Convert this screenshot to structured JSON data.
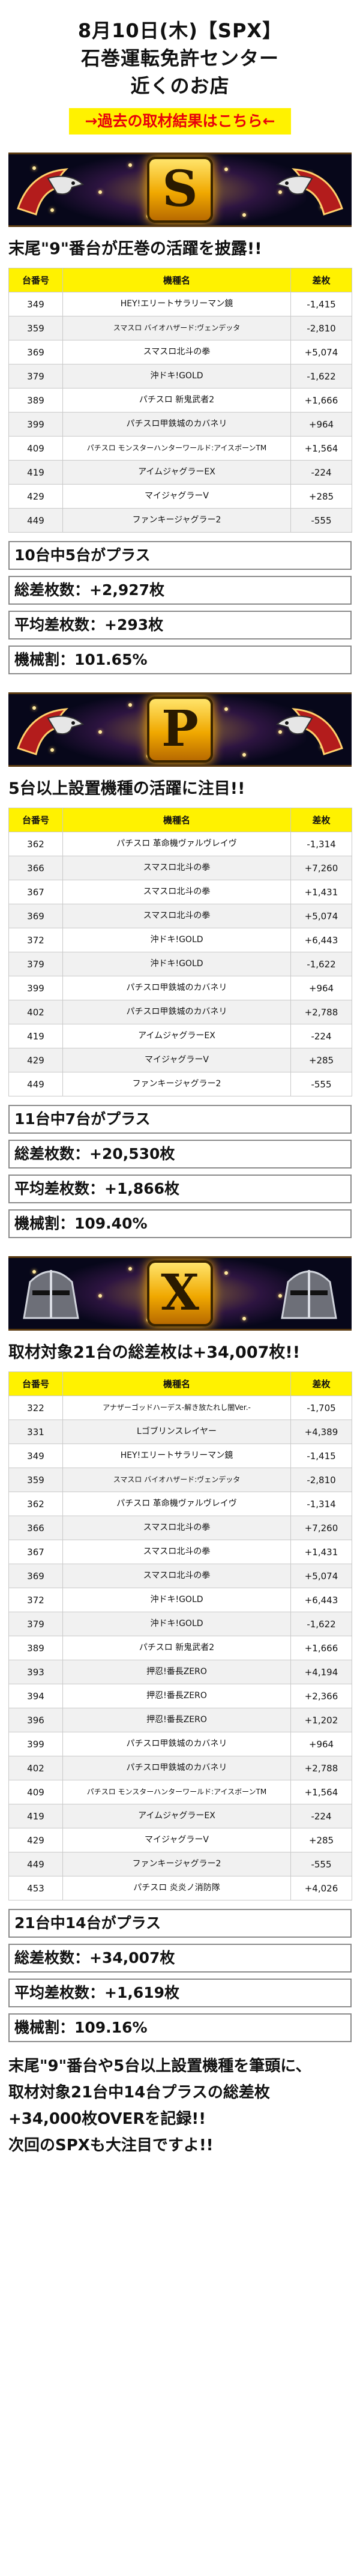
{
  "header": {
    "line1": "8月10日(木)【SPX】",
    "line2": "石巻運転免許センター",
    "line3": "近くのお店",
    "link_label": "→過去の取材結果はこちら←"
  },
  "columns": {
    "num": "台番号",
    "name": "機種名",
    "diff": "差枚"
  },
  "sections": [
    {
      "banner_letter": "S",
      "headline": "末尾\"9\"番台が圧巻の活躍を披露!!",
      "rows": [
        {
          "num": "349",
          "name": "HEY!エリートサラリーマン鏡",
          "diff": "-1,415"
        },
        {
          "num": "359",
          "name": "スマスロ バイオハザード:ヴェンデッタ",
          "diff": "-2,810"
        },
        {
          "num": "369",
          "name": "スマスロ北斗の拳",
          "diff": "+5,074"
        },
        {
          "num": "379",
          "name": "沖ドキ!GOLD",
          "diff": "-1,622"
        },
        {
          "num": "389",
          "name": "パチスロ 新鬼武者2",
          "diff": "+1,666"
        },
        {
          "num": "399",
          "name": "パチスロ甲鉄城のカバネリ",
          "diff": "+964"
        },
        {
          "num": "409",
          "name": "パチスロ モンスターハンターワールド:アイスボーンTM",
          "diff": "+1,564"
        },
        {
          "num": "419",
          "name": "アイムジャグラーEX",
          "diff": "-224"
        },
        {
          "num": "429",
          "name": "マイジャグラーV",
          "diff": "+285"
        },
        {
          "num": "449",
          "name": "ファンキージャグラー2",
          "diff": "-555"
        }
      ],
      "stats": [
        "10台中5台がプラス",
        "総差枚数：+2,927枚",
        "平均差枚数：+293枚",
        "機械割：101.65%"
      ]
    },
    {
      "banner_letter": "P",
      "headline": "5台以上設置機種の活躍に注目!!",
      "rows": [
        {
          "num": "362",
          "name": "パチスロ 革命機ヴァルヴレイヴ",
          "diff": "-1,314"
        },
        {
          "num": "366",
          "name": "スマスロ北斗の拳",
          "diff": "+7,260"
        },
        {
          "num": "367",
          "name": "スマスロ北斗の拳",
          "diff": "+1,431"
        },
        {
          "num": "369",
          "name": "スマスロ北斗の拳",
          "diff": "+5,074"
        },
        {
          "num": "372",
          "name": "沖ドキ!GOLD",
          "diff": "+6,443"
        },
        {
          "num": "379",
          "name": "沖ドキ!GOLD",
          "diff": "-1,622"
        },
        {
          "num": "399",
          "name": "パチスロ甲鉄城のカバネリ",
          "diff": "+964"
        },
        {
          "num": "402",
          "name": "パチスロ甲鉄城のカバネリ",
          "diff": "+2,788"
        },
        {
          "num": "419",
          "name": "アイムジャグラーEX",
          "diff": "-224"
        },
        {
          "num": "429",
          "name": "マイジャグラーV",
          "diff": "+285"
        },
        {
          "num": "449",
          "name": "ファンキージャグラー2",
          "diff": "-555"
        }
      ],
      "stats": [
        "11台中7台がプラス",
        "総差枚数：+20,530枚",
        "平均差枚数：+1,866枚",
        "機械割：109.40%"
      ]
    },
    {
      "banner_letter": "X",
      "headline": "取材対象21台の総差枚は+34,007枚!!",
      "rows": [
        {
          "num": "322",
          "name": "アナザーゴッドハーデス-解き放たれし闇Ver.-",
          "diff": "-1,705"
        },
        {
          "num": "331",
          "name": "Lゴブリンスレイヤー",
          "diff": "+4,389"
        },
        {
          "num": "349",
          "name": "HEY!エリートサラリーマン鏡",
          "diff": "-1,415"
        },
        {
          "num": "359",
          "name": "スマスロ バイオハザード:ヴェンデッタ",
          "diff": "-2,810"
        },
        {
          "num": "362",
          "name": "パチスロ 革命機ヴァルヴレイヴ",
          "diff": "-1,314"
        },
        {
          "num": "366",
          "name": "スマスロ北斗の拳",
          "diff": "+7,260"
        },
        {
          "num": "367",
          "name": "スマスロ北斗の拳",
          "diff": "+1,431"
        },
        {
          "num": "369",
          "name": "スマスロ北斗の拳",
          "diff": "+5,074"
        },
        {
          "num": "372",
          "name": "沖ドキ!GOLD",
          "diff": "+6,443"
        },
        {
          "num": "379",
          "name": "沖ドキ!GOLD",
          "diff": "-1,622"
        },
        {
          "num": "389",
          "name": "パチスロ 新鬼武者2",
          "diff": "+1,666"
        },
        {
          "num": "393",
          "name": "押忍!番長ZERO",
          "diff": "+4,194"
        },
        {
          "num": "394",
          "name": "押忍!番長ZERO",
          "diff": "+2,366"
        },
        {
          "num": "396",
          "name": "押忍!番長ZERO",
          "diff": "+1,202"
        },
        {
          "num": "399",
          "name": "パチスロ甲鉄城のカバネリ",
          "diff": "+964"
        },
        {
          "num": "402",
          "name": "パチスロ甲鉄城のカバネリ",
          "diff": "+2,788"
        },
        {
          "num": "409",
          "name": "パチスロ モンスターハンターワールド:アイスボーンTM",
          "diff": "+1,564"
        },
        {
          "num": "419",
          "name": "アイムジャグラーEX",
          "diff": "-224"
        },
        {
          "num": "429",
          "name": "マイジャグラーV",
          "diff": "+285"
        },
        {
          "num": "449",
          "name": "ファンキージャグラー2",
          "diff": "-555"
        },
        {
          "num": "453",
          "name": "パチスロ 炎炎ノ消防隊",
          "diff": "+4,026"
        }
      ],
      "stats": [
        "21台中14台がプラス",
        "総差枚数：+34,007枚",
        "平均差枚数：+1,619枚",
        "機械割：109.16%"
      ]
    }
  ],
  "footer": {
    "line1": "末尾\"9\"番台や5台以上設置機種を筆頭に、",
    "line2": "取材対象21台中14台プラスの総差枚",
    "line3": "+34,000枚OVERを記録!!",
    "line4": "次回のSPXも大注目ですよ!!"
  },
  "colors": {
    "accent_yellow": "#fff200",
    "link_red": "#e8000b",
    "banner_bg": "#07071a",
    "gold": "#f0a800"
  },
  "icons": [
    "eagle-emblem-icon",
    "knight-helmet-icon"
  ]
}
